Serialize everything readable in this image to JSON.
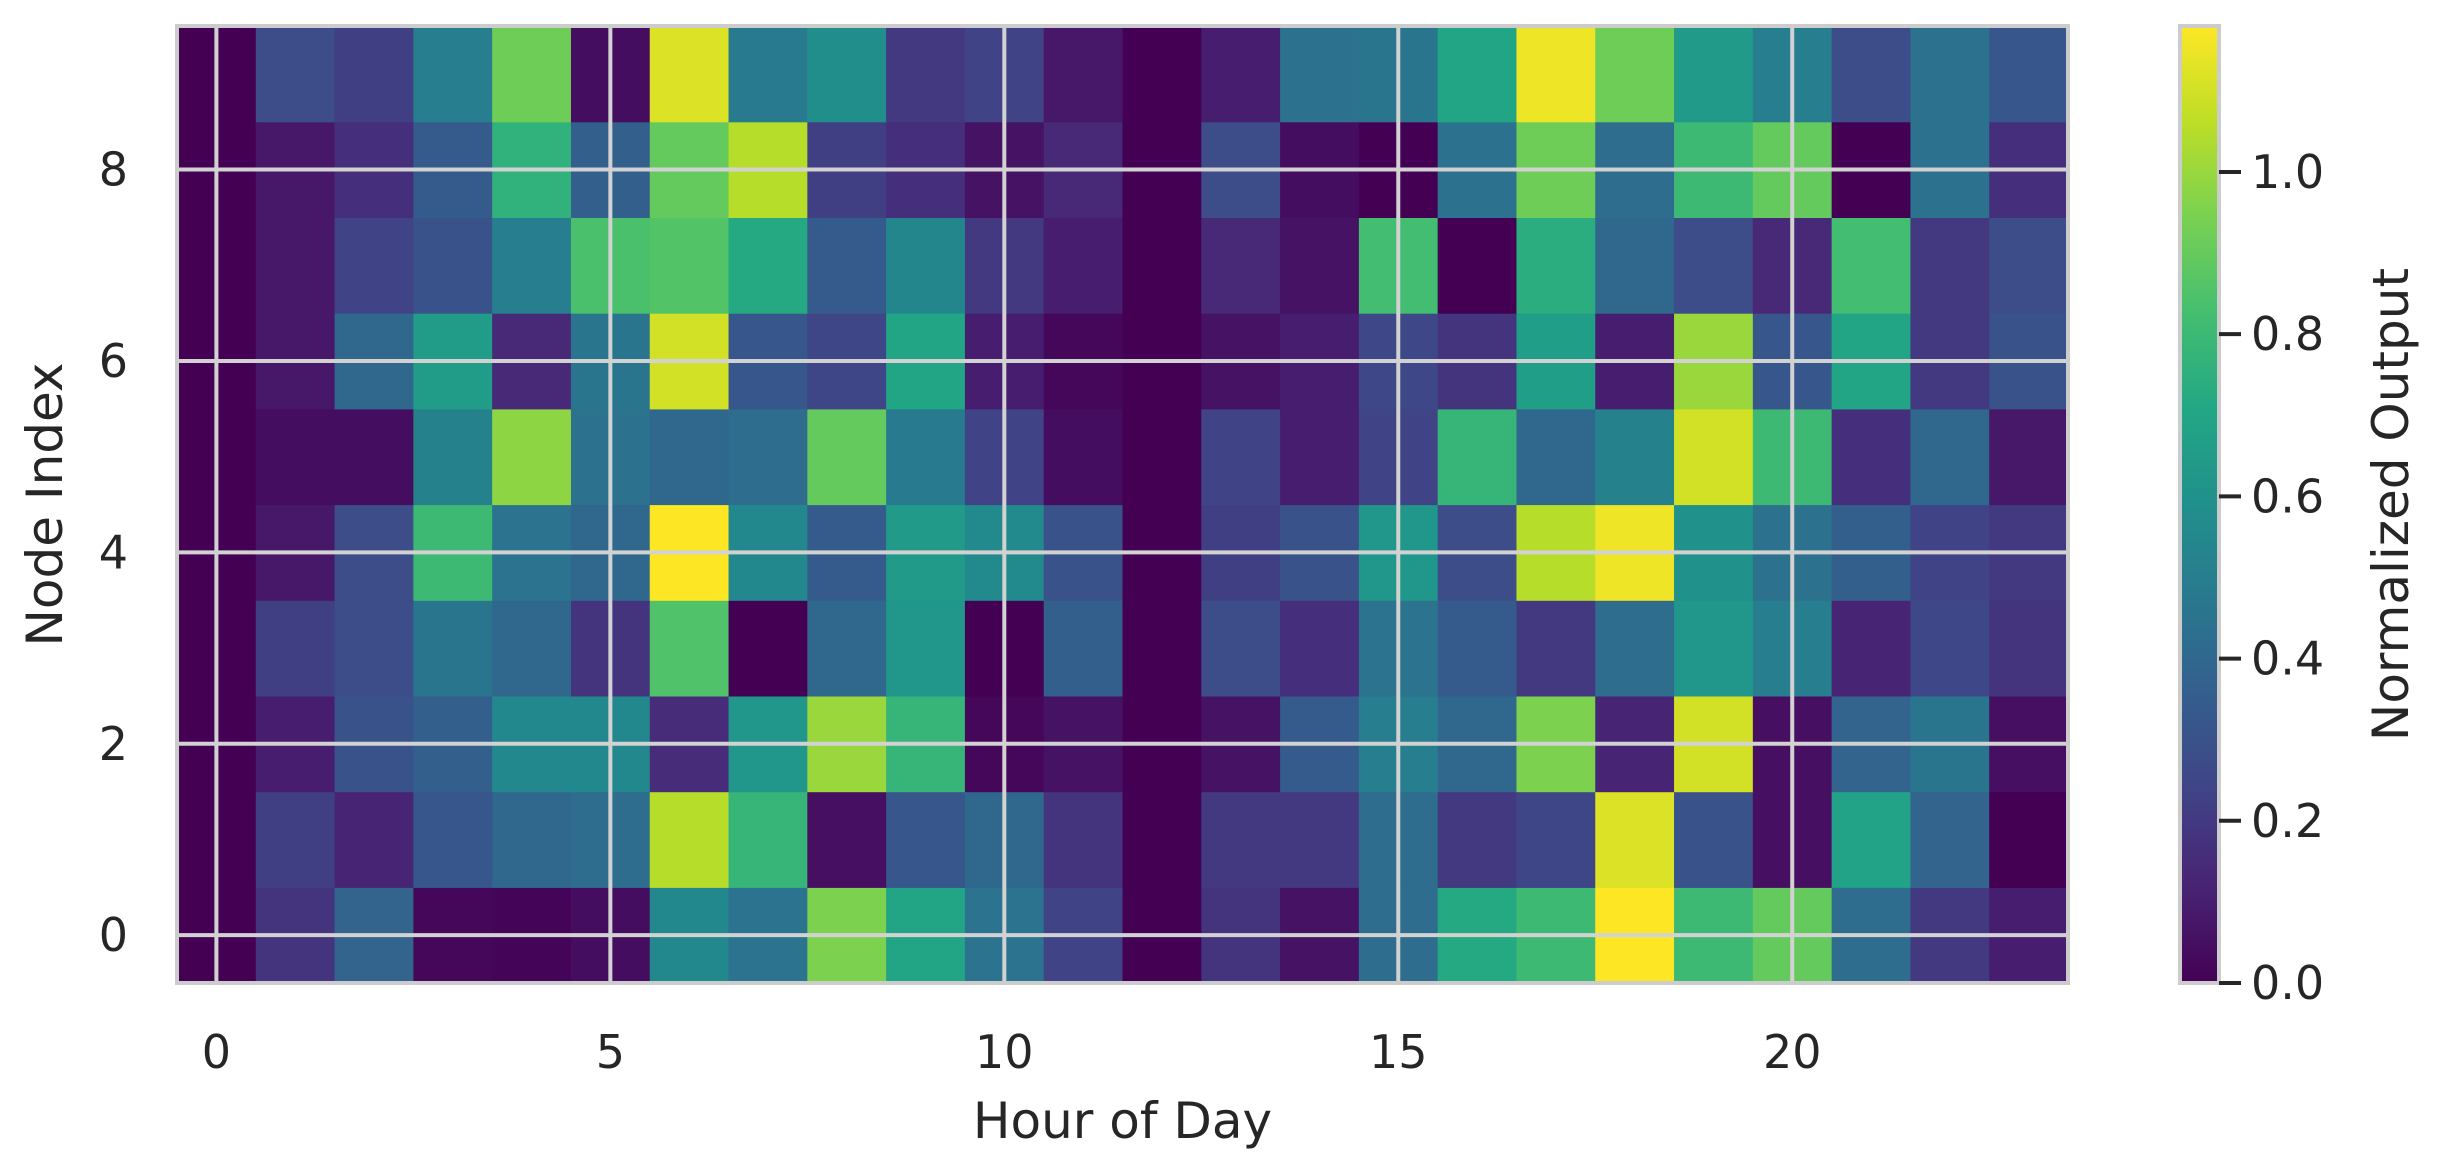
{
  "chart_data": {
    "type": "heatmap",
    "title": "",
    "xlabel": "Hour of Day",
    "ylabel": "Node Index",
    "colorbar_label": "Normalized Output",
    "colormap": "viridis",
    "x": [
      0,
      1,
      2,
      3,
      4,
      5,
      6,
      7,
      8,
      9,
      10,
      11,
      12,
      13,
      14,
      15,
      16,
      17,
      18,
      19,
      20,
      21,
      22,
      23
    ],
    "y": [
      0,
      1,
      2,
      3,
      4,
      5,
      6,
      7,
      8,
      9
    ],
    "x_ticks": [
      0,
      5,
      10,
      15,
      20
    ],
    "x_tick_labels": [
      "0",
      "5",
      "10",
      "15",
      "20"
    ],
    "y_ticks": [
      0,
      2,
      4,
      6,
      8
    ],
    "y_tick_labels": [
      "0",
      "2",
      "4",
      "6",
      "8"
    ],
    "xlim": [
      -0.5,
      23.5
    ],
    "ylim": [
      -0.5,
      9.5
    ],
    "color_range": [
      0.0,
      1.18
    ],
    "colorbar_ticks": [
      0.0,
      0.2,
      0.4,
      0.6,
      0.8,
      1.0
    ],
    "colorbar_tick_labels": [
      "0.0",
      "0.2",
      "0.4",
      "0.6",
      "0.8",
      "1.0"
    ],
    "grid": true,
    "rows": [
      [
        0.0,
        0.18,
        0.38,
        0.02,
        0.01,
        0.04,
        0.55,
        0.45,
        0.95,
        0.7,
        0.45,
        0.24,
        0.0,
        0.18,
        0.06,
        0.42,
        0.72,
        0.8,
        1.18,
        0.8,
        0.9,
        0.42,
        0.2,
        0.1
      ],
      [
        0.0,
        0.22,
        0.12,
        0.32,
        0.4,
        0.42,
        1.05,
        0.78,
        0.05,
        0.32,
        0.4,
        0.18,
        0.0,
        0.2,
        0.2,
        0.42,
        0.2,
        0.25,
        1.12,
        0.3,
        0.05,
        0.68,
        0.38,
        0.0
      ],
      [
        0.0,
        0.1,
        0.3,
        0.36,
        0.55,
        0.55,
        0.15,
        0.62,
        1.0,
        0.78,
        0.02,
        0.06,
        0.0,
        0.06,
        0.34,
        0.5,
        0.4,
        0.95,
        0.12,
        1.1,
        0.05,
        0.38,
        0.46,
        0.05
      ],
      [
        0.0,
        0.22,
        0.28,
        0.46,
        0.4,
        0.18,
        0.85,
        0.0,
        0.4,
        0.62,
        0.0,
        0.36,
        0.0,
        0.28,
        0.16,
        0.45,
        0.34,
        0.2,
        0.42,
        0.62,
        0.5,
        0.12,
        0.26,
        0.18
      ],
      [
        0.0,
        0.08,
        0.28,
        0.8,
        0.45,
        0.4,
        1.2,
        0.55,
        0.34,
        0.64,
        0.56,
        0.3,
        0.0,
        0.22,
        0.3,
        0.62,
        0.28,
        1.05,
        1.15,
        0.6,
        0.44,
        0.36,
        0.24,
        0.2
      ],
      [
        0.0,
        0.04,
        0.04,
        0.52,
        0.98,
        0.44,
        0.4,
        0.42,
        0.9,
        0.48,
        0.24,
        0.04,
        0.0,
        0.24,
        0.1,
        0.24,
        0.78,
        0.4,
        0.52,
        1.1,
        0.8,
        0.16,
        0.4,
        0.08
      ],
      [
        0.0,
        0.08,
        0.4,
        0.65,
        0.14,
        0.46,
        1.1,
        0.32,
        0.25,
        0.7,
        0.1,
        0.02,
        0.0,
        0.06,
        0.1,
        0.26,
        0.18,
        0.66,
        0.1,
        1.0,
        0.32,
        0.7,
        0.2,
        0.3
      ],
      [
        0.0,
        0.08,
        0.24,
        0.3,
        0.5,
        0.84,
        0.86,
        0.72,
        0.34,
        0.54,
        0.2,
        0.1,
        0.0,
        0.14,
        0.06,
        0.82,
        0.0,
        0.74,
        0.4,
        0.28,
        0.14,
        0.82,
        0.2,
        0.28
      ],
      [
        0.0,
        0.08,
        0.16,
        0.34,
        0.76,
        0.36,
        0.9,
        1.05,
        0.22,
        0.16,
        0.06,
        0.14,
        0.0,
        0.28,
        0.04,
        0.0,
        0.44,
        0.92,
        0.42,
        0.8,
        0.9,
        0.0,
        0.44,
        0.16
      ],
      [
        0.0,
        0.28,
        0.22,
        0.5,
        0.92,
        0.04,
        1.12,
        0.48,
        0.58,
        0.2,
        0.24,
        0.08,
        0.0,
        0.1,
        0.44,
        0.46,
        0.7,
        1.15,
        0.92,
        0.64,
        0.5,
        0.28,
        0.44,
        0.32
      ]
    ]
  }
}
